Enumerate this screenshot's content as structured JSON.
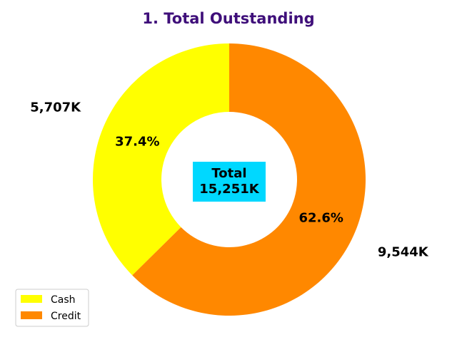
{
  "chart_data": {
    "type": "pie",
    "title": "1. Total Outstanding",
    "labels": [
      "Cash",
      "Credit"
    ],
    "values": [
      5707,
      9544
    ],
    "value_labels": [
      "5,707K",
      "9,544K"
    ],
    "percent_labels": [
      "37.4%",
      "62.6%"
    ],
    "colors": [
      "#ffff00",
      "#ff8800"
    ],
    "donut": true,
    "center_label": [
      "Total",
      "15,251K"
    ],
    "center_box_color": "#00d8ff",
    "title_color": "#3f0f7a",
    "legend_position": "lower-left"
  }
}
